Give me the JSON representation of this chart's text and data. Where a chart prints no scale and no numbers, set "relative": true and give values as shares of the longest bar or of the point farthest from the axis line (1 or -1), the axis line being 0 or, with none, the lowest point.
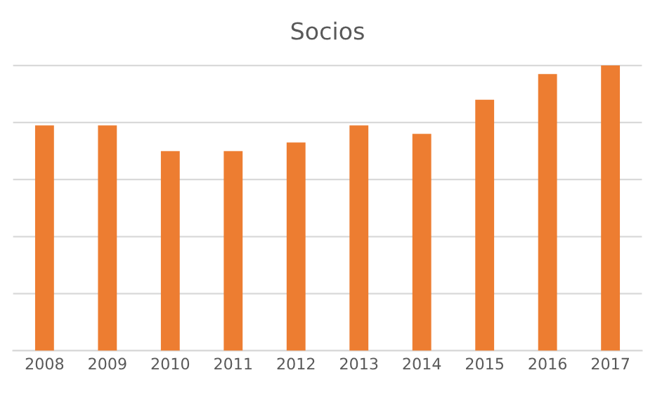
{
  "chart_data": {
    "type": "bar",
    "title": "Socios",
    "categories": [
      "2008",
      "2009",
      "2010",
      "2011",
      "2012",
      "2013",
      "2014",
      "2015",
      "2016",
      "2017"
    ],
    "values": [
      0.79,
      0.79,
      0.7,
      0.7,
      0.73,
      0.79,
      0.76,
      0.88,
      0.97,
      1
    ],
    "color": "#ed7d31",
    "relative": true,
    "grid": "y"
  }
}
